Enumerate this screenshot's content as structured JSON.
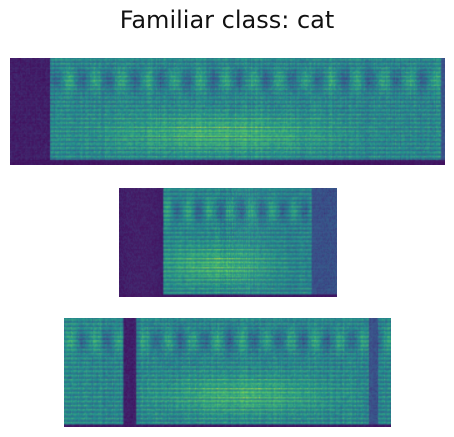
{
  "title": "Familiar class: cat",
  "colormap": [
    "#440154",
    "#3b528b",
    "#21908d",
    "#5dc963",
    "#fde725"
  ],
  "spectrograms": [
    {
      "id": "spec-1",
      "name": "spectrogram-1",
      "columns": 87,
      "rows": 28,
      "quiet_start": 0.09,
      "quiet_end": 0.99,
      "bright_center": 0.48,
      "seed": 11,
      "edge_dark": [
        0.0,
        0.09
      ],
      "edge_dark_end": [
        0.99,
        1.0
      ],
      "bottom_dark_rows": 2
    },
    {
      "id": "spec-2",
      "name": "spectrogram-2",
      "columns": 54,
      "rows": 28,
      "quiet_start": 0.2,
      "quiet_end": 0.88,
      "bright_center": 0.45,
      "seed": 23,
      "edge_dark": [
        0.0,
        0.2
      ],
      "edge_dark_end": [
        0.88,
        1.0
      ],
      "bottom_dark_rows": 1
    },
    {
      "id": "spec-3",
      "name": "spectrogram-3",
      "columns": 70,
      "rows": 28,
      "quiet_start": 0.21,
      "quiet_end": 0.95,
      "bright_center": 0.55,
      "seed": 37,
      "edge_dark": [
        0.18,
        0.22
      ],
      "edge_dark_end": [
        0.93,
        0.96
      ],
      "bottom_dark_rows": 1
    }
  ]
}
